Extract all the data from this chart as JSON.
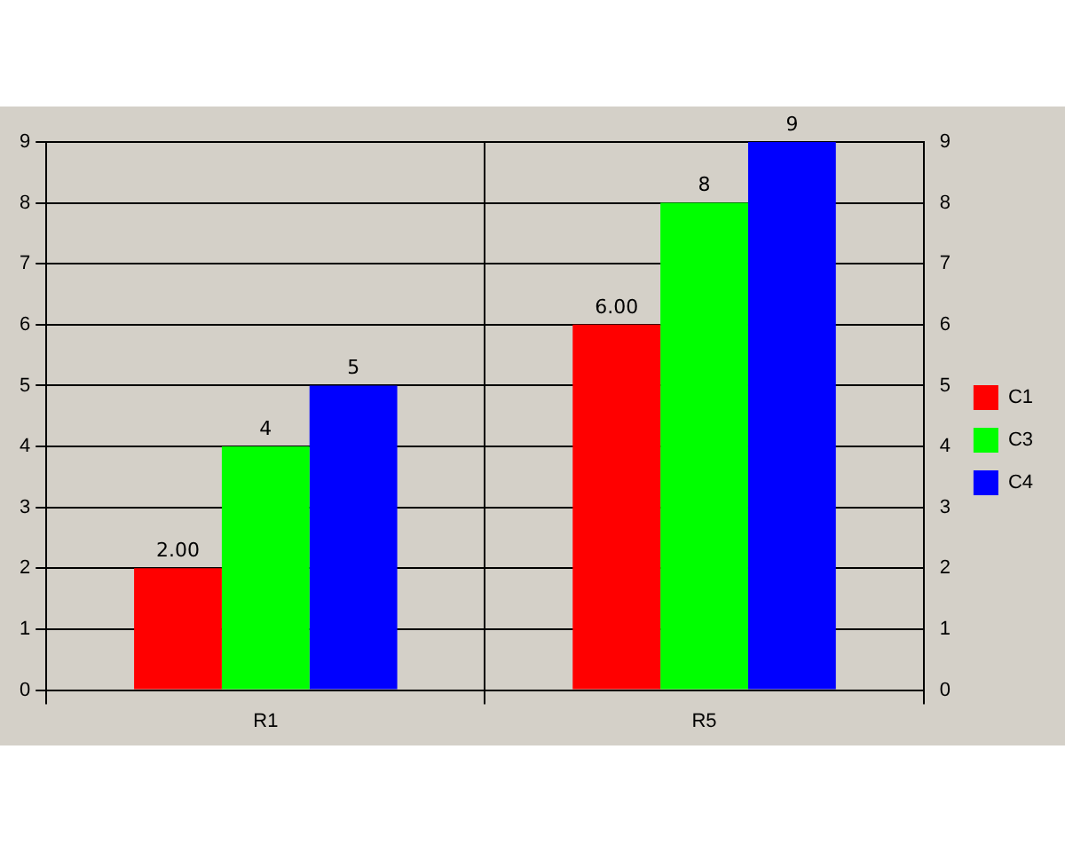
{
  "chart_data": {
    "type": "bar",
    "categories": [
      "R1",
      "R5"
    ],
    "series": [
      {
        "name": "C1",
        "color": "#ff0000",
        "values": [
          2,
          6
        ],
        "value_labels": [
          "2.00",
          "6.00"
        ]
      },
      {
        "name": "C3",
        "color": "#00ff00",
        "values": [
          4,
          8
        ],
        "value_labels": [
          "4",
          "8"
        ]
      },
      {
        "name": "C4",
        "color": "#0000ff",
        "values": [
          5,
          9
        ],
        "value_labels": [
          "5",
          "9"
        ]
      }
    ],
    "ylim": [
      0,
      9
    ],
    "yticks": [
      0,
      1,
      2,
      3,
      4,
      5,
      6,
      7,
      8,
      9
    ],
    "y2lim": [
      0,
      9
    ],
    "y2ticks": [
      0,
      1,
      2,
      3,
      4,
      5,
      6,
      7,
      8,
      9
    ],
    "grid": true,
    "legend": "right"
  }
}
